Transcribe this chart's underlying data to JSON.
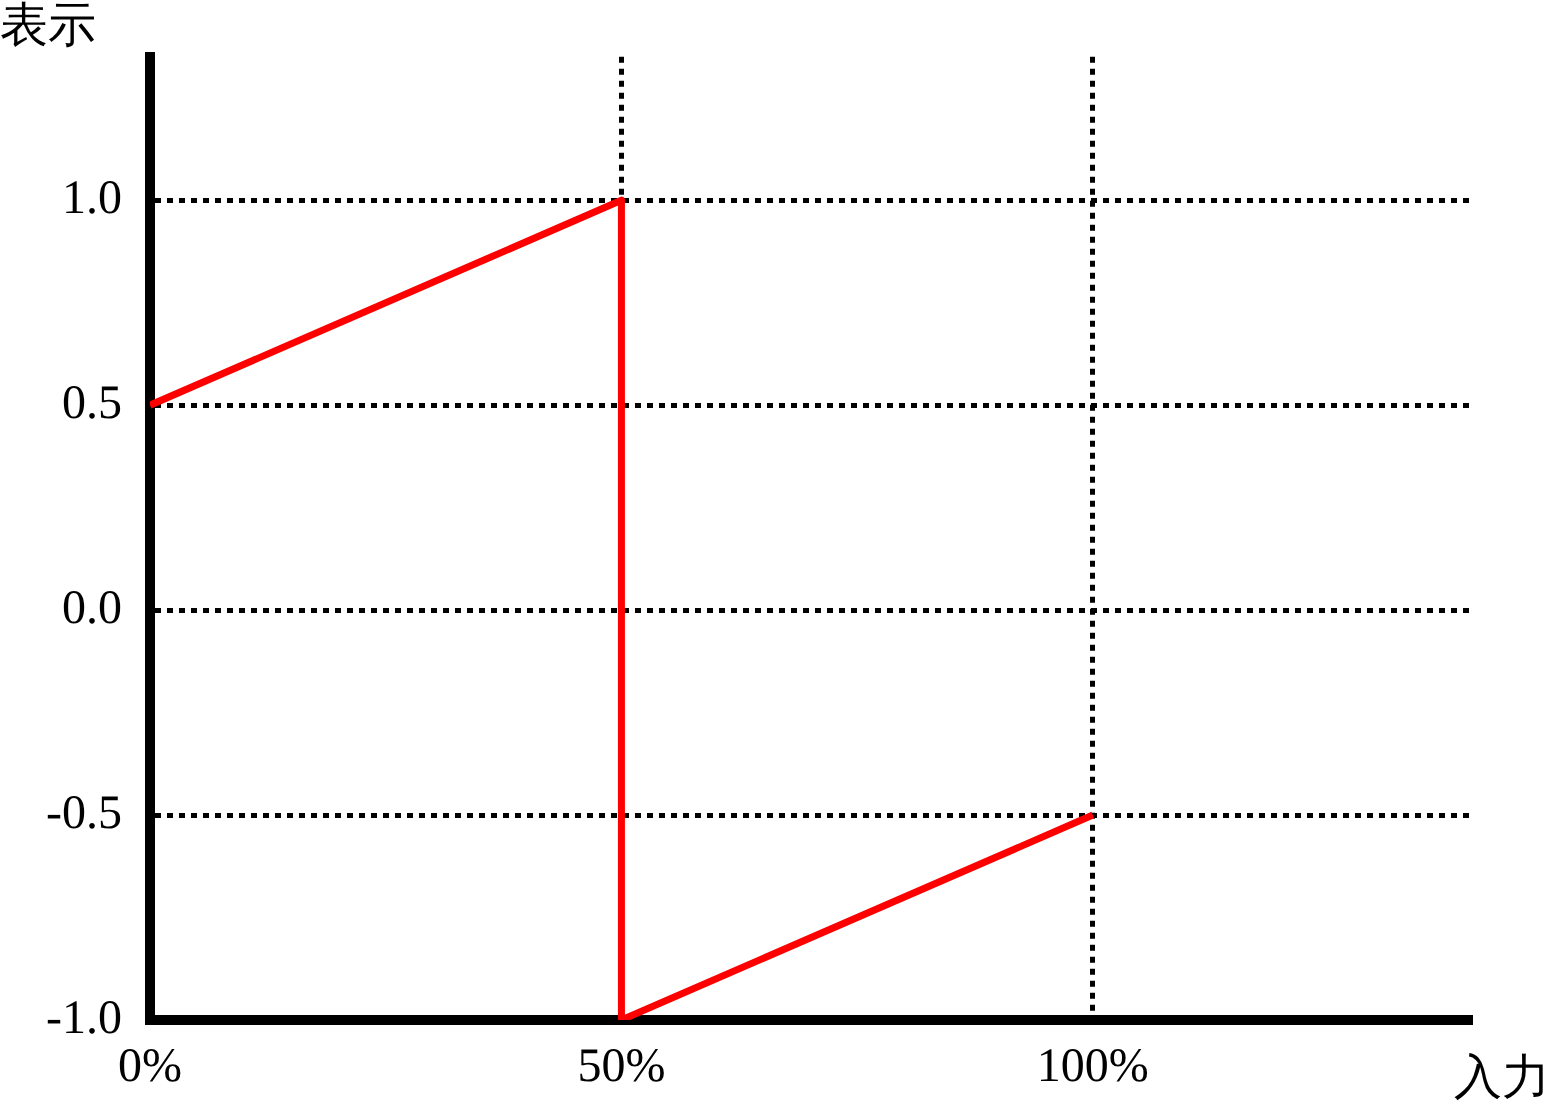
{
  "chart_data": {
    "type": "line",
    "xlabel": "入力",
    "ylabel": "表示",
    "x": [
      0,
      50,
      50,
      100
    ],
    "series": [
      {
        "color": "#ff0000",
        "values": [
          0.5,
          1.0,
          -1.0,
          -0.5
        ]
      }
    ],
    "xlim": [
      0,
      140
    ],
    "xticks": [
      {
        "value": 0,
        "label": "0%"
      },
      {
        "value": 50,
        "label": "50%"
      },
      {
        "value": 100,
        "label": "100%"
      }
    ],
    "ylim": [
      -1,
      1.35
    ],
    "yticks": [
      {
        "value": -1,
        "label": "-1.0"
      },
      {
        "value": -0.5,
        "label": "-0.5"
      },
      {
        "value": 0,
        "label": "0.0"
      },
      {
        "value": 0.5,
        "label": "0.5"
      },
      {
        "value": 1,
        "label": "1.0"
      }
    ],
    "grid": true,
    "legend": false,
    "marker": "none",
    "line_style": "solid"
  }
}
